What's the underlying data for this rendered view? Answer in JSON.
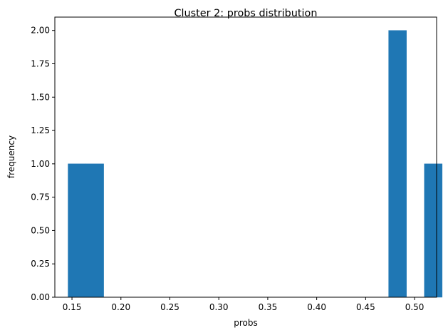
{
  "chart_data": {
    "type": "bar",
    "title": "Cluster 2: probs distribution",
    "xlabel": "probs",
    "ylabel": "frequency",
    "xlim": [
      0.1325,
      0.5225
    ],
    "ylim": [
      0,
      2.1
    ],
    "bar_width": 0.0182,
    "bar_color": "#1f77b4",
    "x_ticks": [
      {
        "value": 0.15,
        "label": "0.15"
      },
      {
        "value": 0.2,
        "label": "0.20"
      },
      {
        "value": 0.25,
        "label": "0.25"
      },
      {
        "value": 0.3,
        "label": "0.30"
      },
      {
        "value": 0.35,
        "label": "0.35"
      },
      {
        "value": 0.4,
        "label": "0.40"
      },
      {
        "value": 0.45,
        "label": "0.45"
      },
      {
        "value": 0.5,
        "label": "0.50"
      }
    ],
    "y_ticks": [
      {
        "value": 0.0,
        "label": "0.00"
      },
      {
        "value": 0.25,
        "label": "0.25"
      },
      {
        "value": 0.5,
        "label": "0.50"
      },
      {
        "value": 0.75,
        "label": "0.75"
      },
      {
        "value": 1.0,
        "label": "1.00"
      },
      {
        "value": 1.25,
        "label": "1.25"
      },
      {
        "value": 1.5,
        "label": "1.50"
      },
      {
        "value": 1.75,
        "label": "1.75"
      },
      {
        "value": 2.0,
        "label": "2.00"
      }
    ],
    "bars": [
      {
        "x": 0.146,
        "count": 1
      },
      {
        "x": 0.1642,
        "count": 1
      },
      {
        "x": 0.4735,
        "count": 2
      },
      {
        "x": 0.4918,
        "count": 0
      },
      {
        "x": 0.51,
        "count": 1
      }
    ]
  }
}
